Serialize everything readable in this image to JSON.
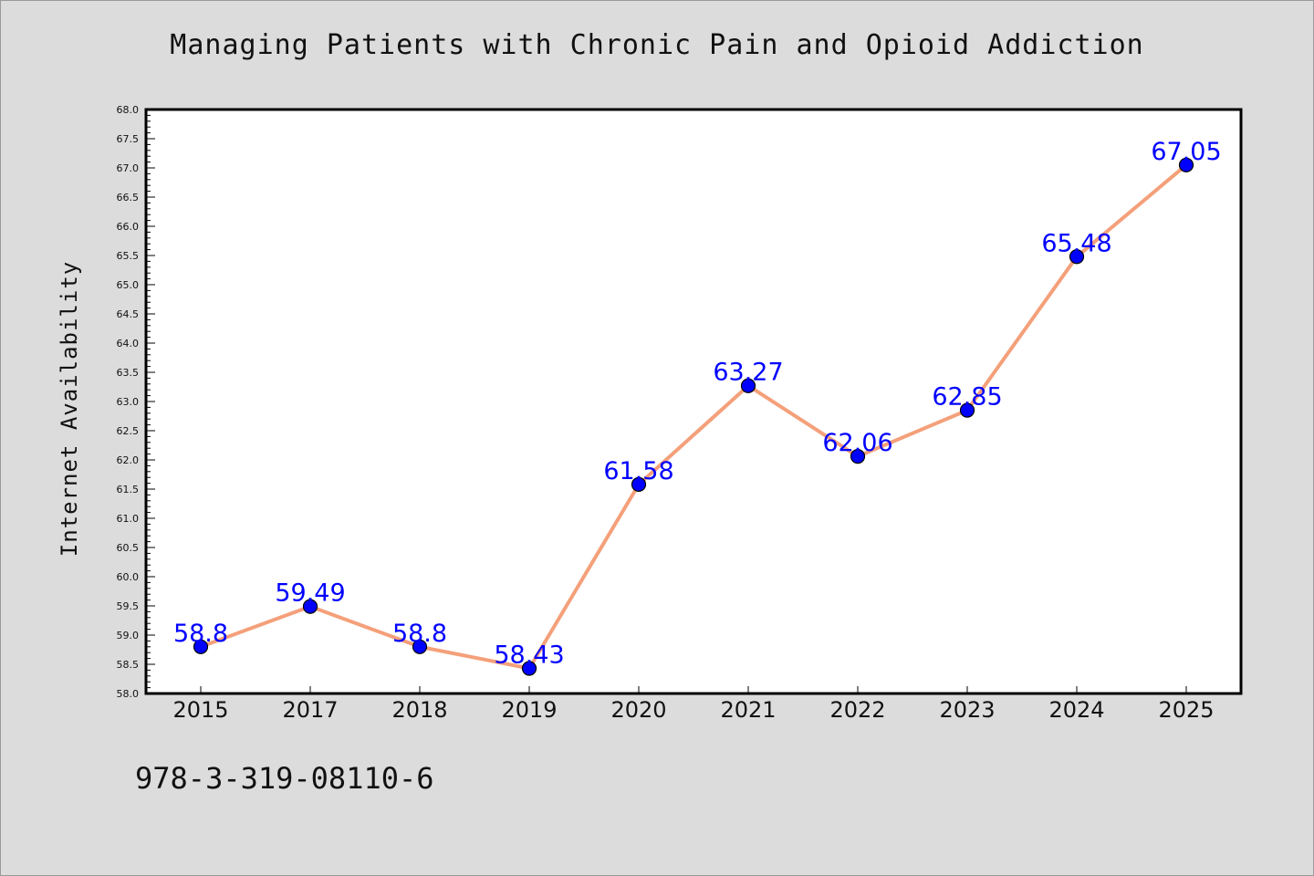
{
  "chart_data": {
    "type": "line",
    "title": "Managing Patients with Chronic Pain and Opioid Addiction",
    "xlabel": "",
    "ylabel": "Internet Availability",
    "categories": [
      "2015",
      "2017",
      "2018",
      "2019",
      "2020",
      "2021",
      "2022",
      "2023",
      "2024",
      "2025"
    ],
    "values": [
      58.8,
      59.49,
      58.8,
      58.43,
      61.58,
      63.27,
      62.06,
      62.85,
      65.48,
      67.05
    ],
    "data_labels": [
      "58.8",
      "59.49",
      "58.8",
      "58.43",
      "61.58",
      "63.27",
      "62.06",
      "62.85",
      "65.48",
      "67.05"
    ],
    "ylim": [
      58.0,
      68.0
    ],
    "yticks": [
      "58.0",
      "58.5",
      "59.0",
      "59.5",
      "60.0",
      "60.5",
      "61.0",
      "61.5",
      "62.0",
      "62.5",
      "63.0",
      "63.5",
      "64.0",
      "64.5",
      "65.0",
      "65.5",
      "66.0",
      "66.5",
      "67.0",
      "67.5",
      "68.0"
    ],
    "line_color": "#f4a07a",
    "marker_color": "#0000ff",
    "label_color": "#0000ff",
    "grid": false,
    "legend": "none"
  },
  "footer": {
    "isbn": "978-3-319-08110-6"
  }
}
